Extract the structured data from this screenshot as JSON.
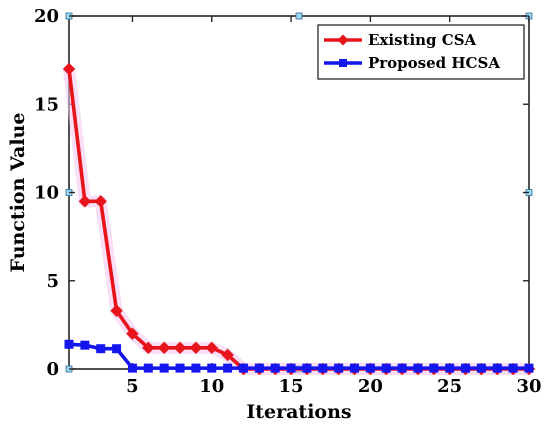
{
  "chart_data": {
    "type": "line",
    "title": "",
    "xlabel": "Iterations",
    "ylabel": "Function Value",
    "xlim": [
      1,
      30
    ],
    "ylim": [
      0,
      20
    ],
    "xticks": [
      5,
      10,
      15,
      20,
      25,
      30
    ],
    "yticks": [
      0,
      5,
      10,
      15,
      20
    ],
    "grid": false,
    "legend_position": "top-right",
    "x": [
      1,
      2,
      3,
      4,
      5,
      6,
      7,
      8,
      9,
      10,
      11,
      12,
      13,
      14,
      15,
      16,
      17,
      18,
      19,
      20,
      21,
      22,
      23,
      24,
      25,
      26,
      27,
      28,
      29,
      30
    ],
    "series": [
      {
        "name": "Existing CSA",
        "color": "#e8141b",
        "marker": "diamond",
        "values": [
          17,
          9.5,
          9.5,
          3.3,
          2,
          1.2,
          1.2,
          1.2,
          1.2,
          1.2,
          0.8,
          0,
          0,
          0,
          0,
          0,
          0,
          0,
          0,
          0,
          0,
          0,
          0,
          0,
          0,
          0,
          0,
          0,
          0,
          0
        ]
      },
      {
        "name": "Proposed HCSA",
        "color": "#1515ee",
        "marker": "square",
        "values": [
          1.4,
          1.35,
          1.15,
          1.15,
          0.05,
          0.05,
          0.05,
          0.05,
          0.05,
          0.05,
          0.05,
          0.05,
          0.05,
          0.05,
          0.05,
          0.05,
          0.05,
          0.05,
          0.05,
          0.05,
          0.05,
          0.05,
          0.05,
          0.05,
          0.05,
          0.05,
          0.05,
          0.05,
          0.05,
          0.05
        ]
      }
    ]
  }
}
